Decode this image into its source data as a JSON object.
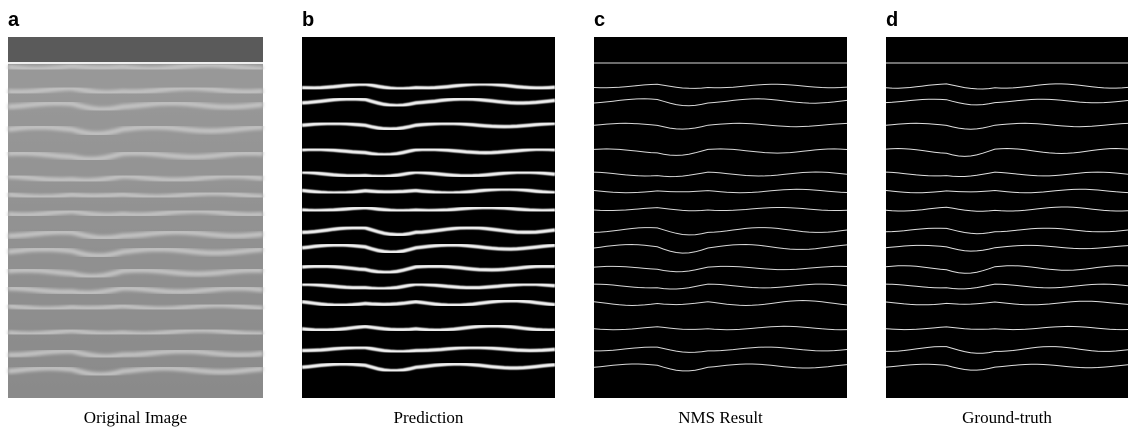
{
  "panels": [
    {
      "letter": "a",
      "caption": "Original Image"
    },
    {
      "letter": "b",
      "caption": "Prediction"
    },
    {
      "letter": "c",
      "caption": "NMS Result"
    },
    {
      "letter": "d",
      "caption": "Ground-truth"
    }
  ]
}
